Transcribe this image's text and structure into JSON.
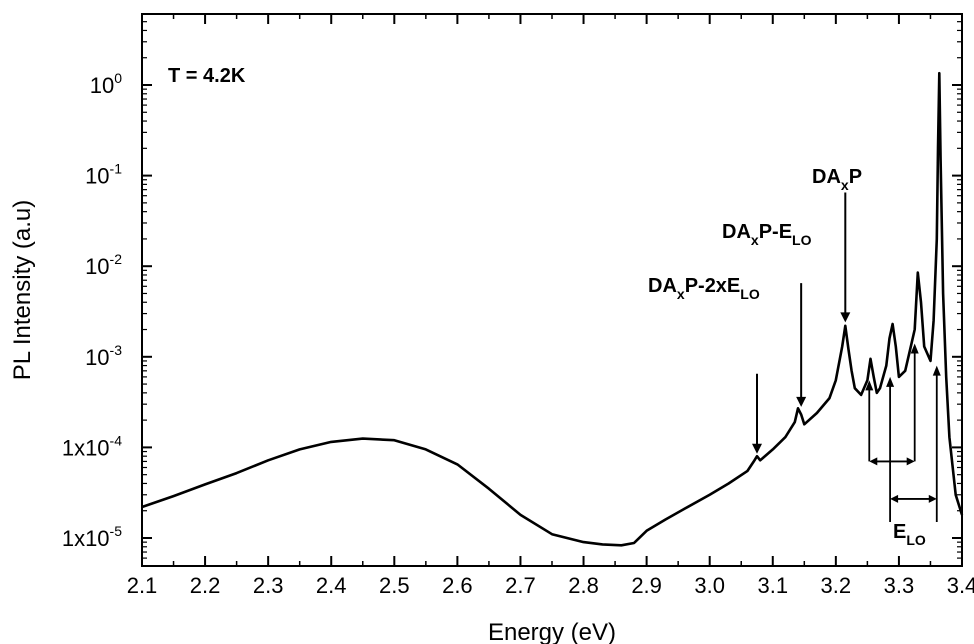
{
  "chart_data": {
    "type": "line",
    "xlabel": "Energy (eV)",
    "ylabel": "PL Intensity (a.u)",
    "xlim": [
      2.1,
      3.4
    ],
    "ylim": [
      6e-06,
      3
    ],
    "yscale": "log",
    "grid": false,
    "x_ticks": [
      "2.1",
      "2.2",
      "2.3",
      "2.4",
      "2.5",
      "2.6",
      "2.7",
      "2.8",
      "2.9",
      "3.0",
      "3.1",
      "3.2",
      "3.3",
      "3.4"
    ],
    "y_ticks": [
      {
        "value": 1e-05,
        "base": "1x10",
        "exp": "-5"
      },
      {
        "value": 0.0001,
        "base": "1x10",
        "exp": "-4"
      },
      {
        "value": 0.001,
        "base": "10",
        "exp": "-3"
      },
      {
        "value": 0.01,
        "base": "10",
        "exp": "-2"
      },
      {
        "value": 0.1,
        "base": "10",
        "exp": "-1"
      },
      {
        "value": 1,
        "base": "10",
        "exp": "0"
      }
    ],
    "series": [
      {
        "x": [
          2.1,
          2.15,
          2.2,
          2.25,
          2.3,
          2.35,
          2.4,
          2.45,
          2.5,
          2.55,
          2.6,
          2.65,
          2.7,
          2.75,
          2.8,
          2.83,
          2.86,
          2.88,
          2.9,
          2.93,
          2.96,
          3.0,
          3.03,
          3.06,
          3.07,
          3.075,
          3.08,
          3.1,
          3.12,
          3.135,
          3.14,
          3.145,
          3.15,
          3.17,
          3.19,
          3.2,
          3.21,
          3.215,
          3.22,
          3.225,
          3.23,
          3.24,
          3.25,
          3.255,
          3.26,
          3.265,
          3.27,
          3.28,
          3.285,
          3.29,
          3.295,
          3.3,
          3.31,
          3.32,
          3.325,
          3.33,
          3.335,
          3.34,
          3.35,
          3.355,
          3.36,
          3.362,
          3.364,
          3.366,
          3.37,
          3.375,
          3.38,
          3.39,
          3.4
        ],
        "y": [
          2.2e-05,
          2.9e-05,
          3.9e-05,
          5.2e-05,
          7.2e-05,
          9.5e-05,
          0.000115,
          0.000125,
          0.00012,
          9.5e-05,
          6.5e-05,
          3.5e-05,
          1.8e-05,
          1.1e-05,
          9e-06,
          8.5e-06,
          8.3e-06,
          8.8e-06,
          1.2e-05,
          1.6e-05,
          2.1e-05,
          3e-05,
          4e-05,
          5.5e-05,
          7e-05,
          8e-05,
          7.2e-05,
          9.5e-05,
          0.00013,
          0.00019,
          0.00027,
          0.00023,
          0.00018,
          0.00024,
          0.00035,
          0.00055,
          0.0013,
          0.0022,
          0.0012,
          0.0007,
          0.00045,
          0.00038,
          0.00055,
          0.00095,
          0.0006,
          0.0004,
          0.00045,
          0.0008,
          0.0016,
          0.0023,
          0.0013,
          0.0006,
          0.0007,
          0.0014,
          0.002,
          0.0085,
          0.004,
          0.0013,
          0.0009,
          0.0025,
          0.02,
          0.2,
          1.35,
          0.15,
          0.005,
          0.0006,
          0.00013,
          3e-05,
          1.8e-05
        ]
      }
    ],
    "annotations": [
      {
        "label": "T = 4.2K"
      },
      {
        "parts": [
          {
            "t": "DA"
          },
          {
            "t": "x",
            "sub": true
          },
          {
            "t": "P"
          }
        ],
        "arrow_from": [
          3.215,
          0.065
        ],
        "arrow_to": [
          3.215,
          0.0024
        ]
      },
      {
        "parts": [
          {
            "t": "DA"
          },
          {
            "t": "x",
            "sub": true
          },
          {
            "t": "P-E"
          },
          {
            "t": "LO",
            "sub": true
          }
        ],
        "arrow_from": [
          3.145,
          0.0065
        ],
        "arrow_to": [
          3.145,
          0.00028
        ]
      },
      {
        "parts": [
          {
            "t": "DA"
          },
          {
            "t": "x",
            "sub": true
          },
          {
            "t": "P-2xE"
          },
          {
            "t": "LO",
            "sub": true
          }
        ],
        "arrow_from": [
          3.075,
          0.00065
        ],
        "arrow_to": [
          3.075,
          8.5e-05
        ]
      },
      {
        "parts": [
          {
            "t": "E"
          },
          {
            "t": "LO",
            "sub": true
          }
        ]
      }
    ]
  }
}
